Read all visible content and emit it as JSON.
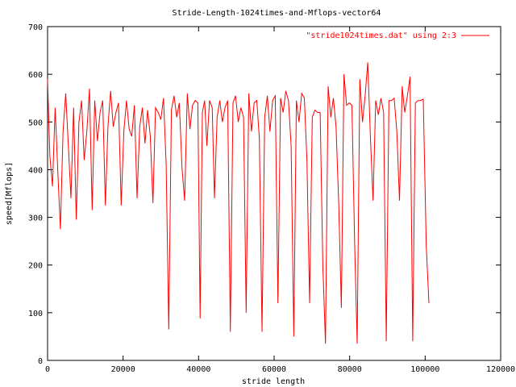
{
  "chart_data": {
    "type": "line",
    "title": "Stride-Length-1024times-and-Mflops-vector64",
    "xlabel": "stride length",
    "ylabel": "speed[Mflops]",
    "xlim": [
      0,
      120000
    ],
    "ylim": [
      0,
      700
    ],
    "x_ticks": [
      "0",
      "20000",
      "40000",
      "60000",
      "80000",
      "100000",
      "120000"
    ],
    "y_ticks": [
      "0",
      "100",
      "200",
      "300",
      "400",
      "500",
      "600",
      "700"
    ],
    "grid": false,
    "legend_position": "top-right",
    "series": [
      {
        "name": "\"stride1024times.dat\" using 2:3",
        "color": "#ff0000",
        "points": [
          [
            0,
            590
          ],
          [
            600,
            430
          ],
          [
            1300,
            365
          ],
          [
            2000,
            530
          ],
          [
            2700,
            400
          ],
          [
            3400,
            275
          ],
          [
            4100,
            480
          ],
          [
            4800,
            560
          ],
          [
            5500,
            450
          ],
          [
            6200,
            340
          ],
          [
            6900,
            530
          ],
          [
            7600,
            295
          ],
          [
            8300,
            500
          ],
          [
            9000,
            545
          ],
          [
            9700,
            420
          ],
          [
            10400,
            480
          ],
          [
            11100,
            570
          ],
          [
            11800,
            315
          ],
          [
            12500,
            545
          ],
          [
            13200,
            460
          ],
          [
            13900,
            520
          ],
          [
            14600,
            545
          ],
          [
            15300,
            325
          ],
          [
            16000,
            490
          ],
          [
            16700,
            565
          ],
          [
            17400,
            490
          ],
          [
            18100,
            520
          ],
          [
            18800,
            540
          ],
          [
            19500,
            325
          ],
          [
            20200,
            480
          ],
          [
            20900,
            545
          ],
          [
            21600,
            485
          ],
          [
            22300,
            470
          ],
          [
            23000,
            535
          ],
          [
            23700,
            340
          ],
          [
            24400,
            490
          ],
          [
            25100,
            530
          ],
          [
            25800,
            455
          ],
          [
            26500,
            525
          ],
          [
            27200,
            470
          ],
          [
            27900,
            330
          ],
          [
            28600,
            530
          ],
          [
            29300,
            520
          ],
          [
            30000,
            505
          ],
          [
            30700,
            550
          ],
          [
            31400,
            410
          ],
          [
            32100,
            65
          ],
          [
            32800,
            525
          ],
          [
            33500,
            555
          ],
          [
            34200,
            510
          ],
          [
            34900,
            540
          ],
          [
            35600,
            405
          ],
          [
            36300,
            335
          ],
          [
            37000,
            560
          ],
          [
            37700,
            485
          ],
          [
            38400,
            535
          ],
          [
            39100,
            545
          ],
          [
            39800,
            540
          ],
          [
            40400,
            88
          ],
          [
            41000,
            520
          ],
          [
            41600,
            545
          ],
          [
            42200,
            450
          ],
          [
            42900,
            545
          ],
          [
            43600,
            530
          ],
          [
            44200,
            340
          ],
          [
            44900,
            510
          ],
          [
            45600,
            545
          ],
          [
            46300,
            500
          ],
          [
            47000,
            530
          ],
          [
            47700,
            545
          ],
          [
            48400,
            60
          ],
          [
            49100,
            540
          ],
          [
            49800,
            555
          ],
          [
            50500,
            500
          ],
          [
            51200,
            530
          ],
          [
            51900,
            510
          ],
          [
            52600,
            100
          ],
          [
            53300,
            560
          ],
          [
            54000,
            480
          ],
          [
            54700,
            540
          ],
          [
            55400,
            545
          ],
          [
            56100,
            465
          ],
          [
            56800,
            60
          ],
          [
            57500,
            510
          ],
          [
            58200,
            555
          ],
          [
            58900,
            480
          ],
          [
            59600,
            545
          ],
          [
            60300,
            555
          ],
          [
            61000,
            120
          ],
          [
            61700,
            550
          ],
          [
            62400,
            520
          ],
          [
            63100,
            565
          ],
          [
            63800,
            545
          ],
          [
            64500,
            450
          ],
          [
            65200,
            50
          ],
          [
            65900,
            545
          ],
          [
            66600,
            500
          ],
          [
            67300,
            560
          ],
          [
            68000,
            550
          ],
          [
            68700,
            420
          ],
          [
            69400,
            120
          ],
          [
            70100,
            510
          ],
          [
            70800,
            525
          ],
          [
            71500,
            520
          ],
          [
            72200,
            520
          ],
          [
            72900,
            200
          ],
          [
            73600,
            35
          ],
          [
            74300,
            575
          ],
          [
            75000,
            510
          ],
          [
            75700,
            550
          ],
          [
            76400,
            490
          ],
          [
            77100,
            330
          ],
          [
            77800,
            110
          ],
          [
            78500,
            600
          ],
          [
            79200,
            535
          ],
          [
            79900,
            540
          ],
          [
            80600,
            535
          ],
          [
            81300,
            250
          ],
          [
            82000,
            35
          ],
          [
            82700,
            590
          ],
          [
            83400,
            500
          ],
          [
            84100,
            555
          ],
          [
            84800,
            625
          ],
          [
            85500,
            470
          ],
          [
            86200,
            335
          ],
          [
            86900,
            545
          ],
          [
            87600,
            515
          ],
          [
            88300,
            550
          ],
          [
            89000,
            520
          ],
          [
            89700,
            40
          ],
          [
            90400,
            545
          ],
          [
            91100,
            545
          ],
          [
            91800,
            550
          ],
          [
            92500,
            480
          ],
          [
            93200,
            335
          ],
          [
            93900,
            575
          ],
          [
            94600,
            520
          ],
          [
            95300,
            555
          ],
          [
            96000,
            595
          ],
          [
            96700,
            40
          ],
          [
            97400,
            540
          ],
          [
            98100,
            545
          ],
          [
            98800,
            545
          ],
          [
            99500,
            548
          ],
          [
            100300,
            240
          ],
          [
            101000,
            120
          ]
        ]
      }
    ]
  }
}
